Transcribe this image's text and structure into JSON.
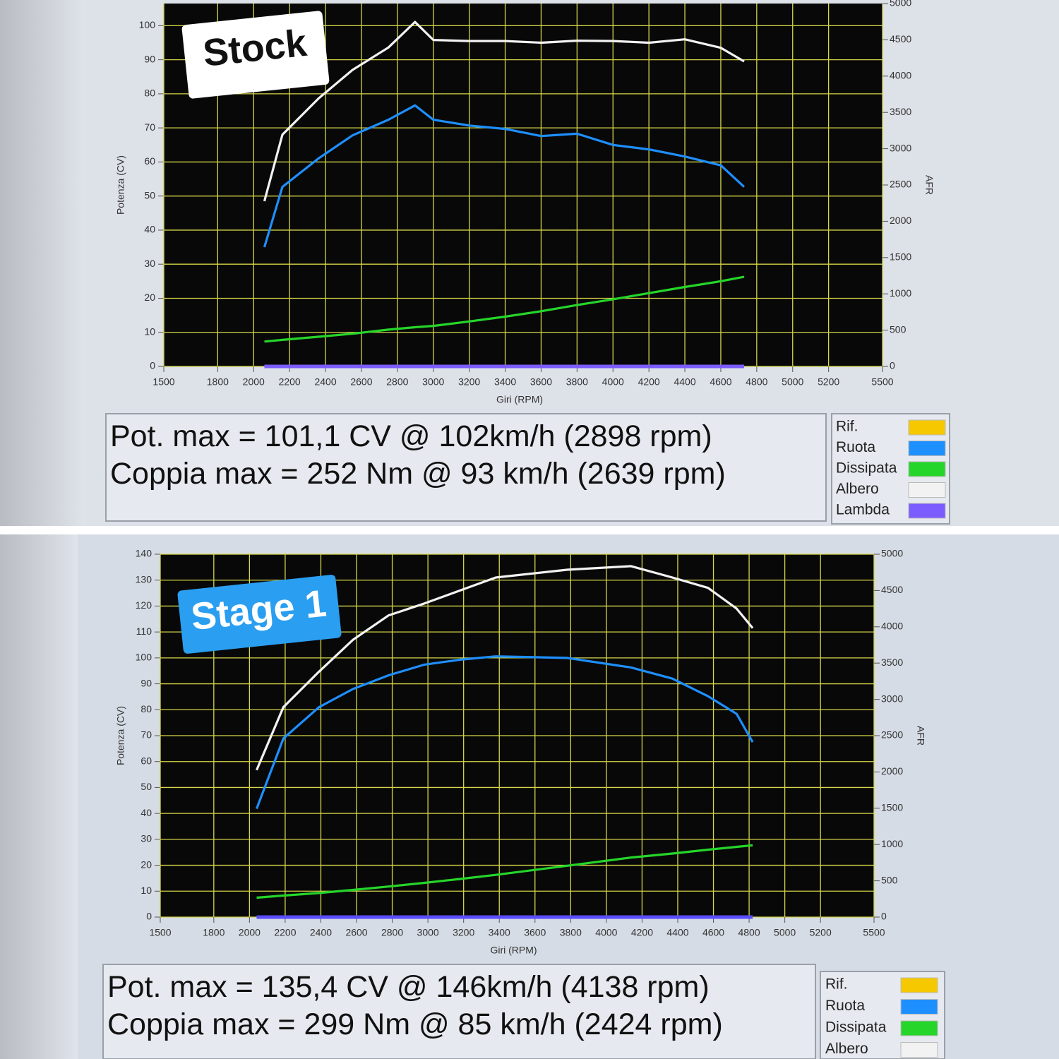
{
  "chart_data": [
    {
      "type": "line",
      "label": "Stock",
      "info_lines": [
        "Pot. max = 101,1 CV @ 102km/h (2898 rpm)",
        "Coppia max = 252 Nm @ 93 km/h (2639 rpm)"
      ],
      "xlabel": "Giri (RPM)",
      "ylabel": "Potenza (CV)",
      "y2label": "AFR",
      "x": [
        2060,
        2160,
        2360,
        2550,
        2750,
        2898,
        3000,
        3200,
        3400,
        3600,
        3800,
        4000,
        4200,
        4400,
        4600,
        4730
      ],
      "series": [
        {
          "name": "Rif.",
          "color": "#f5c800",
          "values": [
            null,
            null,
            null,
            null,
            null,
            null,
            null,
            null,
            null,
            null,
            null,
            null,
            null,
            null,
            null,
            null
          ]
        },
        {
          "name": "Ruota",
          "color": "#1e8fff",
          "values": [
            35,
            52.7,
            61,
            67.8,
            72.4,
            76.6,
            72.4,
            70.7,
            69.7,
            67.6,
            68.3,
            65,
            63.7,
            61.6,
            59,
            52.7
          ]
        },
        {
          "name": "Dissipata",
          "color": "#25d52a",
          "values": [
            7.3,
            7.8,
            8.7,
            9.6,
            10.8,
            11.5,
            11.9,
            13.2,
            14.6,
            16.2,
            18,
            19.7,
            21.5,
            23.3,
            25,
            26.3
          ]
        },
        {
          "name": "Albero",
          "color": "#f2f2f2",
          "values": [
            48.5,
            68,
            78.6,
            87,
            93.6,
            101.1,
            95.8,
            95.5,
            95.5,
            95,
            95.6,
            95.5,
            95,
            96,
            93.5,
            89.5
          ]
        },
        {
          "name": "Lambda",
          "color": "#7b5cff",
          "axis": "y2",
          "values": [
            0,
            0,
            0,
            0,
            0,
            0,
            0,
            0,
            0,
            0,
            0,
            0,
            0,
            0,
            0,
            0
          ]
        }
      ],
      "xlim": [
        1500,
        5500
      ],
      "xticks": [
        1500,
        1800,
        2000,
        2200,
        2400,
        2600,
        2800,
        3000,
        3200,
        3400,
        3600,
        3800,
        4000,
        4200,
        4400,
        4600,
        4800,
        5000,
        5200,
        5500
      ],
      "ylim": [
        0,
        106.5
      ],
      "yticks": [
        0,
        10,
        20,
        30,
        40,
        50,
        60,
        70,
        80,
        90,
        100
      ],
      "y2lim": [
        0,
        5000
      ],
      "y2ticks": [
        0,
        500,
        1000,
        1500,
        2000,
        2500,
        3000,
        3500,
        4000,
        4500,
        5000
      ],
      "grid": true,
      "grid_color": "#d6d64a"
    },
    {
      "type": "line",
      "label": "Stage 1",
      "info_lines": [
        "Pot. max = 135,4 CV @ 146km/h (4138 rpm)",
        "Coppia max = 299 Nm @ 85 km/h (2424 rpm)"
      ],
      "xlabel": "Giri (RPM)",
      "ylabel": "Potenza (CV)",
      "y2label": "AFR",
      "x": [
        2040,
        2190,
        2390,
        2580,
        2780,
        2980,
        3180,
        3380,
        3780,
        4138,
        4370,
        4570,
        4730,
        4820
      ],
      "series": [
        {
          "name": "Rif.",
          "color": "#f5c800",
          "values": [
            null,
            null,
            null,
            null,
            null,
            null,
            null,
            null,
            null,
            null,
            null,
            null,
            null,
            null
          ]
        },
        {
          "name": "Ruota",
          "color": "#1e8fff",
          "values": [
            41.8,
            68.9,
            81,
            88,
            93.3,
            97.4,
            99.3,
            100.6,
            100,
            96.3,
            92,
            85.2,
            78.4,
            67.5
          ]
        },
        {
          "name": "Dissipata",
          "color": "#25d52a",
          "values": [
            7.5,
            8.3,
            9.3,
            10.5,
            11.8,
            13.2,
            14.7,
            16.3,
            19.8,
            23,
            24.5,
            26,
            27.1,
            27.7
          ]
        },
        {
          "name": "Albero",
          "color": "#f2f2f2",
          "values": [
            56.7,
            81,
            94.7,
            107,
            116.4,
            121,
            126,
            131,
            134,
            135.4,
            131,
            127,
            119,
            111.5
          ]
        },
        {
          "color": "#5a4cff",
          "axis": "y2",
          "values": [
            0,
            0,
            0,
            0,
            0,
            0,
            0,
            0,
            0,
            0,
            0,
            0,
            0,
            0
          ]
        }
      ],
      "xlim": [
        1500,
        5500
      ],
      "xticks": [
        1500,
        1800,
        2000,
        2200,
        2400,
        2600,
        2800,
        3000,
        3200,
        3400,
        3600,
        3800,
        4000,
        4200,
        4400,
        4600,
        4800,
        5000,
        5200,
        5500
      ],
      "ylim": [
        0,
        140
      ],
      "yticks": [
        0,
        10,
        20,
        30,
        40,
        50,
        60,
        70,
        80,
        90,
        100,
        110,
        120,
        130,
        140
      ],
      "y2lim": [
        0,
        5000
      ],
      "y2ticks": [
        0,
        500,
        1000,
        1500,
        2000,
        2500,
        3000,
        3500,
        4000,
        4500,
        5000
      ],
      "grid": true,
      "grid_color": "#d6d64a"
    }
  ]
}
